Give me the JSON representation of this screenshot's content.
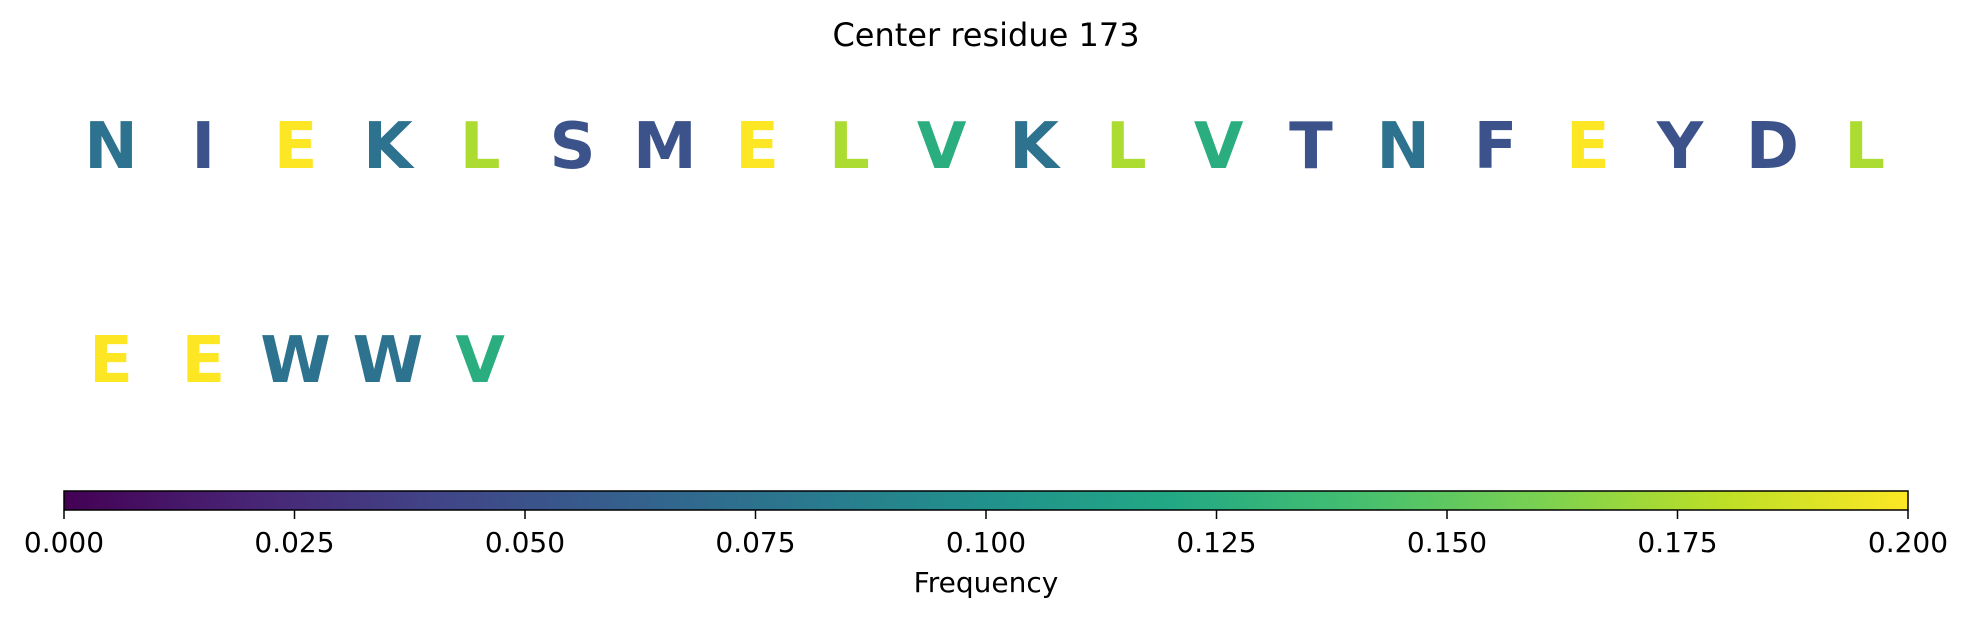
{
  "chart_data": {
    "type": "table",
    "title": "Center residue 173",
    "rows": [
      [
        {
          "letter": "N",
          "freq": 0.075
        },
        {
          "letter": "I",
          "freq": 0.05
        },
        {
          "letter": "E",
          "freq": 0.2
        },
        {
          "letter": "K",
          "freq": 0.075
        },
        {
          "letter": "L",
          "freq": 0.175
        },
        {
          "letter": "S",
          "freq": 0.05
        },
        {
          "letter": "M",
          "freq": 0.05
        },
        {
          "letter": "E",
          "freq": 0.2
        },
        {
          "letter": "L",
          "freq": 0.175
        },
        {
          "letter": "V",
          "freq": 0.125
        },
        {
          "letter": "K",
          "freq": 0.075
        },
        {
          "letter": "L",
          "freq": 0.175
        },
        {
          "letter": "V",
          "freq": 0.125
        },
        {
          "letter": "T",
          "freq": 0.05
        },
        {
          "letter": "N",
          "freq": 0.075
        },
        {
          "letter": "F",
          "freq": 0.05
        },
        {
          "letter": "E",
          "freq": 0.2
        },
        {
          "letter": "Y",
          "freq": 0.05
        },
        {
          "letter": "D",
          "freq": 0.05
        },
        {
          "letter": "L",
          "freq": 0.175
        }
      ],
      [
        {
          "letter": "E",
          "freq": 0.2
        },
        {
          "letter": "E",
          "freq": 0.2
        },
        {
          "letter": "W",
          "freq": 0.075
        },
        {
          "letter": "W",
          "freq": 0.075
        },
        {
          "letter": "V",
          "freq": 0.125
        }
      ]
    ],
    "colorbar": {
      "label": "Frequency",
      "range": [
        0,
        0.2
      ],
      "colormap": "viridis",
      "ticks": [
        0,
        0.025,
        0.05,
        0.075,
        0.1,
        0.125,
        0.15,
        0.175,
        0.2
      ],
      "tick_labels": [
        "0.000",
        "0.025",
        "0.050",
        "0.075",
        "0.100",
        "0.125",
        "0.150",
        "0.175",
        "0.200"
      ],
      "orientation": "horizontal",
      "placement": "bottom"
    }
  }
}
